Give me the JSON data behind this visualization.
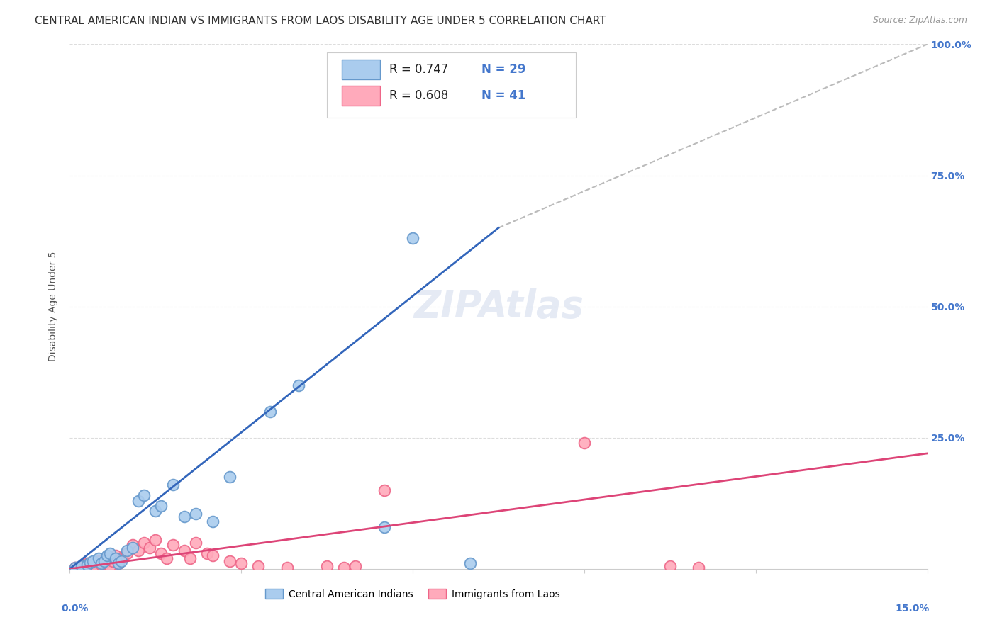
{
  "title": "CENTRAL AMERICAN INDIAN VS IMMIGRANTS FROM LAOS DISABILITY AGE UNDER 5 CORRELATION CHART",
  "source": "Source: ZipAtlas.com",
  "ylabel": "Disability Age Under 5",
  "xlim": [
    0.0,
    15.0
  ],
  "ylim": [
    0.0,
    100.0
  ],
  "yticks": [
    0.0,
    25.0,
    50.0,
    75.0,
    100.0
  ],
  "ytick_labels": [
    "",
    "25.0%",
    "50.0%",
    "75.0%",
    "100.0%"
  ],
  "watermark": "ZIPAtlas",
  "legend_label_blue": "Central American Indians",
  "legend_label_pink": "Immigrants from Laos",
  "blue_color": "#6699CC",
  "blue_fill": "#AACCEE",
  "pink_color": "#EE6688",
  "pink_fill": "#FFAABB",
  "blue_line_color": "#3366BB",
  "pink_line_color": "#DD4477",
  "dashed_line_color": "#BBBBBB",
  "blue_scatter_x": [
    0.1,
    0.2,
    0.3,
    0.35,
    0.4,
    0.5,
    0.55,
    0.6,
    0.65,
    0.7,
    0.8,
    0.85,
    0.9,
    1.0,
    1.1,
    1.2,
    1.3,
    1.5,
    1.6,
    1.8,
    2.0,
    2.2,
    2.5,
    2.8,
    3.5,
    4.0,
    5.5,
    6.0,
    7.0
  ],
  "blue_scatter_y": [
    0.3,
    0.5,
    0.8,
    1.2,
    1.5,
    2.0,
    1.0,
    1.5,
    2.5,
    3.0,
    2.0,
    1.0,
    1.5,
    3.5,
    4.0,
    13.0,
    14.0,
    11.0,
    12.0,
    16.0,
    10.0,
    10.5,
    9.0,
    17.5,
    30.0,
    35.0,
    8.0,
    63.0,
    1.0
  ],
  "pink_scatter_x": [
    0.1,
    0.2,
    0.25,
    0.3,
    0.35,
    0.4,
    0.45,
    0.5,
    0.55,
    0.6,
    0.65,
    0.7,
    0.75,
    0.8,
    0.85,
    0.9,
    1.0,
    1.1,
    1.2,
    1.3,
    1.4,
    1.5,
    1.6,
    1.7,
    1.8,
    2.0,
    2.1,
    2.2,
    2.4,
    2.5,
    2.8,
    3.0,
    3.3,
    3.8,
    4.5,
    4.8,
    5.0,
    5.5,
    9.0,
    10.5,
    11.0
  ],
  "pink_scatter_y": [
    0.3,
    0.5,
    0.8,
    1.0,
    0.3,
    1.2,
    0.5,
    1.5,
    0.8,
    1.0,
    2.0,
    0.5,
    1.5,
    2.5,
    1.0,
    2.0,
    3.0,
    4.5,
    3.5,
    5.0,
    4.0,
    5.5,
    3.0,
    2.0,
    4.5,
    3.5,
    2.0,
    5.0,
    3.0,
    2.5,
    1.5,
    1.0,
    0.5,
    0.3,
    0.5,
    0.3,
    0.5,
    15.0,
    24.0,
    0.5,
    0.3
  ],
  "blue_line_x": [
    0.0,
    7.5
  ],
  "blue_line_y": [
    0.0,
    65.0
  ],
  "pink_line_x": [
    0.0,
    15.0
  ],
  "pink_line_y": [
    0.0,
    22.0
  ],
  "diag_line_x": [
    7.5,
    15.0
  ],
  "diag_line_y": [
    65.0,
    100.0
  ],
  "title_fontsize": 11,
  "source_fontsize": 9,
  "watermark_fontsize": 38,
  "axis_label_fontsize": 10,
  "tick_fontsize": 10,
  "legend_fontsize": 12,
  "background_color": "#FFFFFF"
}
